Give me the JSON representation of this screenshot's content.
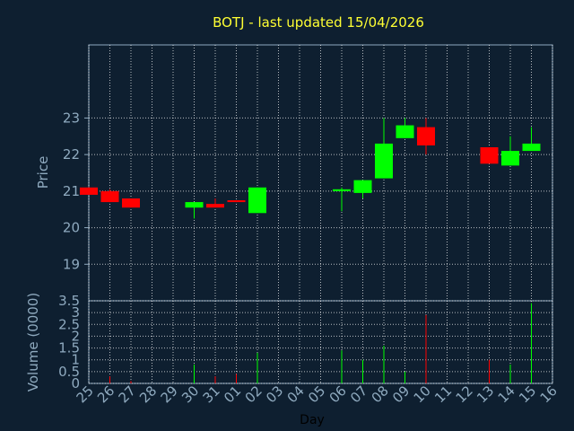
{
  "chart_data": {
    "type": "candlestick",
    "title": "BOTJ - last updated 15/04/2026",
    "xlabel": "Day",
    "price_panel": {
      "ylabel": "Price",
      "ylim": [
        18,
        25
      ],
      "yticks": [
        19,
        20,
        21,
        22,
        23
      ],
      "grid": true
    },
    "volume_panel": {
      "ylabel": "Volume (0000)",
      "ylim": [
        0,
        3.5
      ],
      "yticks": [
        0,
        0.5,
        1,
        1.5,
        2,
        2.5,
        3,
        3.5
      ],
      "ytick_labels": [
        "0",
        "0.5",
        "1",
        "1.5",
        "2",
        "2.5",
        "3",
        "3.5"
      ],
      "grid": true
    },
    "x_tick_labels": [
      "25",
      "26",
      "27",
      "28",
      "29",
      "30",
      "31",
      "01",
      "02",
      "03",
      "04",
      "05",
      "06",
      "07",
      "08",
      "09",
      "10",
      "11",
      "12",
      "13",
      "14",
      "15",
      "16"
    ],
    "colors": {
      "up": "#00ff00",
      "down": "#ff0000",
      "background": "#0e1f30",
      "title": "#ffff33",
      "axis_text": "#8faabf",
      "grid": "#ffffff"
    },
    "candles": [
      {
        "day": "25",
        "open": 21.1,
        "high": 21.1,
        "low": 20.9,
        "close": 20.9,
        "volume": 0.0
      },
      {
        "day": "26",
        "open": 21.0,
        "high": 21.05,
        "low": 20.7,
        "close": 20.7,
        "volume": 0.3
      },
      {
        "day": "27",
        "open": 20.8,
        "high": 20.8,
        "low": 20.55,
        "close": 20.55,
        "volume": 0.1
      },
      {
        "day": "30",
        "open": 20.55,
        "high": 20.7,
        "low": 20.25,
        "close": 20.7,
        "volume": 0.8
      },
      {
        "day": "31",
        "open": 20.65,
        "high": 20.8,
        "low": 20.55,
        "close": 20.55,
        "volume": 0.3
      },
      {
        "day": "01",
        "open": 20.75,
        "high": 20.75,
        "low": 20.7,
        "close": 20.7,
        "volume": 0.4
      },
      {
        "day": "02",
        "open": 20.4,
        "high": 21.1,
        "low": 20.4,
        "close": 21.1,
        "volume": 1.3
      },
      {
        "day": "06",
        "open": 21.0,
        "high": 21.1,
        "low": 20.45,
        "close": 21.05,
        "volume": 1.4
      },
      {
        "day": "07",
        "open": 20.95,
        "high": 21.3,
        "low": 20.8,
        "close": 21.3,
        "volume": 1.0
      },
      {
        "day": "08",
        "open": 21.35,
        "high": 23.0,
        "low": 21.35,
        "close": 22.3,
        "volume": 1.6
      },
      {
        "day": "09",
        "open": 22.45,
        "high": 23.0,
        "low": 22.45,
        "close": 22.8,
        "volume": 0.5
      },
      {
        "day": "10",
        "open": 22.75,
        "high": 23.0,
        "low": 22.0,
        "close": 22.25,
        "volume": 2.9
      },
      {
        "day": "13",
        "open": 22.2,
        "high": 22.2,
        "low": 21.75,
        "close": 21.75,
        "volume": 1.0
      },
      {
        "day": "14",
        "open": 21.7,
        "high": 22.5,
        "low": 21.7,
        "close": 22.1,
        "volume": 0.8
      },
      {
        "day": "15",
        "open": 22.1,
        "high": 22.75,
        "low": 22.1,
        "close": 22.3,
        "volume": 3.4
      }
    ]
  }
}
